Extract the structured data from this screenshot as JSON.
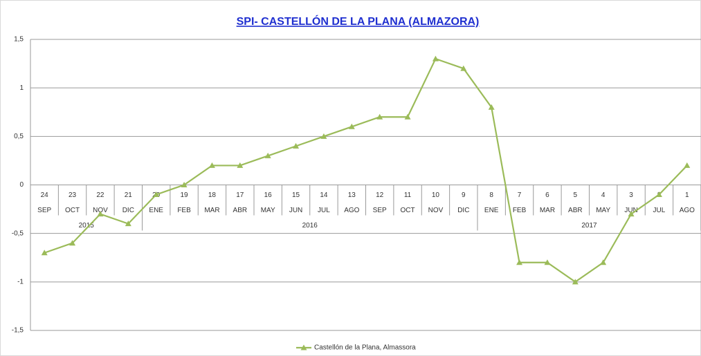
{
  "chart_data": {
    "type": "line",
    "title": "SPI- CASTELLÓN DE LA PLANA (ALMAZORA)",
    "categories": [
      "SEP",
      "OCT",
      "NOV",
      "DIC",
      "ENE",
      "FEB",
      "MAR",
      "ABR",
      "MAY",
      "JUN",
      "JUL",
      "AGO",
      "SEP",
      "OCT",
      "NOV",
      "DIC",
      "ENE",
      "FEB",
      "MAR",
      "ABR",
      "MAY",
      "JUN",
      "JUL",
      "AGO"
    ],
    "category_numbers": [
      24,
      23,
      22,
      21,
      20,
      19,
      18,
      17,
      16,
      15,
      14,
      13,
      12,
      11,
      10,
      9,
      8,
      7,
      6,
      5,
      4,
      3,
      2,
      1
    ],
    "category_years": [
      "2015",
      "2015",
      "2015",
      "2015",
      "2016",
      "2016",
      "2016",
      "2016",
      "2016",
      "2016",
      "2016",
      "2016",
      "2016",
      "2016",
      "2016",
      "2016",
      "2017",
      "2017",
      "2017",
      "2017",
      "2017",
      "2017",
      "2017",
      "2017"
    ],
    "series": [
      {
        "name": "Castellón de la Plana, Almassora",
        "color": "#9bbb59",
        "values": [
          -0.7,
          -0.6,
          -0.3,
          -0.4,
          -0.1,
          0,
          0.2,
          0.2,
          0.3,
          0.4,
          0.5,
          0.6,
          0.7,
          0.7,
          1.3,
          1.2,
          0.8,
          -0.8,
          -0.8,
          -1.0,
          -0.8,
          -0.3,
          -0.1,
          0.2
        ]
      }
    ],
    "ylim": [
      -1.5,
      1.5
    ],
    "yticks": [
      {
        "value": -1.5,
        "label": "-1,5"
      },
      -1,
      {
        "value": -0.5,
        "label": "-0,5"
      },
      0,
      {
        "value": 0.5,
        "label": "0,5"
      },
      1,
      {
        "value": 1.5,
        "label": "1,5"
      }
    ],
    "grid": true,
    "legend": "bottom"
  }
}
